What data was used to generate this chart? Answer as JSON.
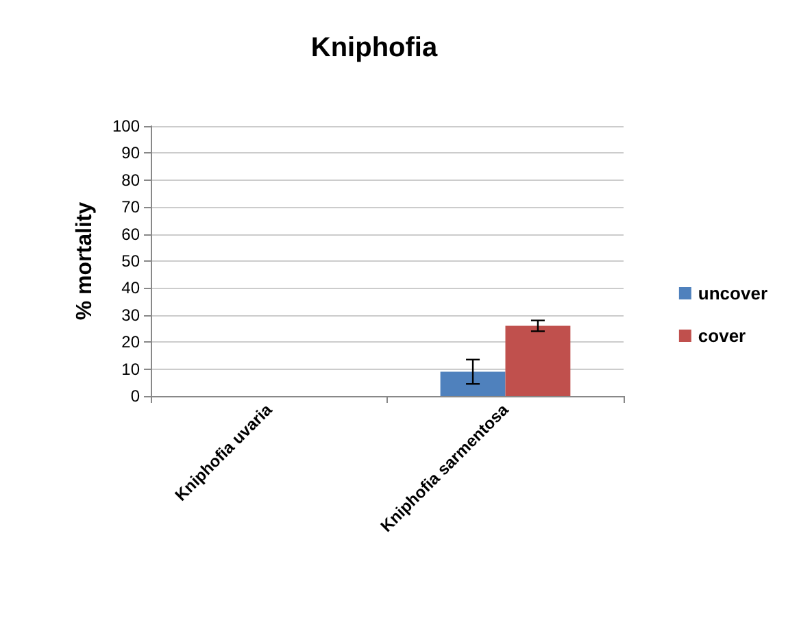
{
  "chart_data": {
    "type": "bar",
    "title": "Kniphofia",
    "ylabel": "% mortality",
    "categories": [
      "Kniphofia uvaria",
      "Kniphofia sarmentosa"
    ],
    "series": [
      {
        "name": "uncover",
        "color": "#4f81bd",
        "values": [
          0,
          9
        ],
        "errors": [
          null,
          4.5
        ]
      },
      {
        "name": "cover",
        "color": "#c0504d",
        "values": [
          0,
          26
        ],
        "errors": [
          null,
          2
        ]
      }
    ],
    "ylim": [
      0,
      100
    ],
    "yticks": [
      0,
      10,
      20,
      30,
      40,
      50,
      60,
      70,
      80,
      90,
      100
    ],
    "grid": "y",
    "legend": "right"
  }
}
